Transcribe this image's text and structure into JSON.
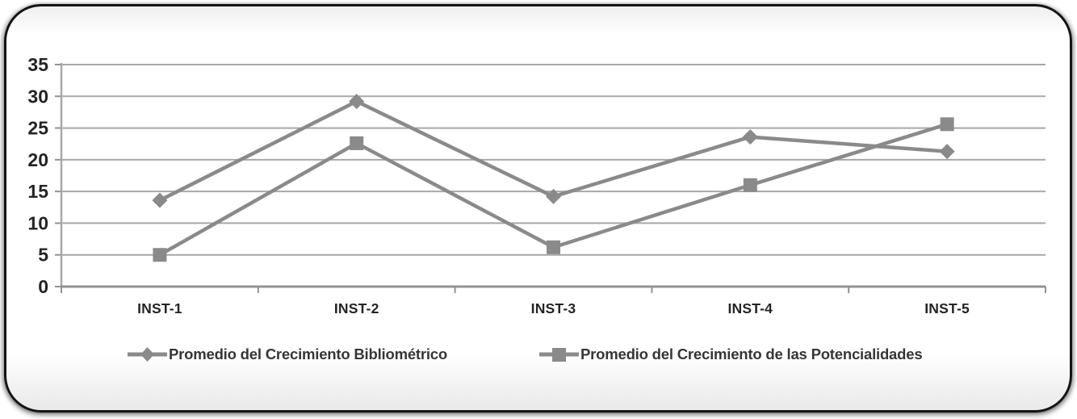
{
  "chart_data": {
    "type": "line",
    "categories": [
      "INST-1",
      "INST-2",
      "INST-3",
      "INST-4",
      "INST-5"
    ],
    "series": [
      {
        "name": "Promedio del Crecimiento Bibliométrico",
        "marker": "diamond",
        "values": [
          13.6,
          29.2,
          14.2,
          23.6,
          21.3
        ]
      },
      {
        "name": "Promedio del Crecimiento de las Potencialidades",
        "marker": "square",
        "values": [
          5.0,
          22.6,
          6.2,
          16.0,
          25.6
        ]
      }
    ],
    "title": "",
    "xlabel": "",
    "ylabel": "",
    "ylim": [
      0,
      35
    ],
    "yticks": [
      0,
      5,
      10,
      15,
      20,
      25,
      30,
      35
    ],
    "grid": true,
    "legend_position": "bottom",
    "colors": {
      "series": "#8a8a8a",
      "gridline": "#a8a8a8",
      "axis": "#929292",
      "tick_text": "#242424",
      "legend_text": "#363636",
      "frame_border": "#141414",
      "background": "#ffffff"
    }
  }
}
